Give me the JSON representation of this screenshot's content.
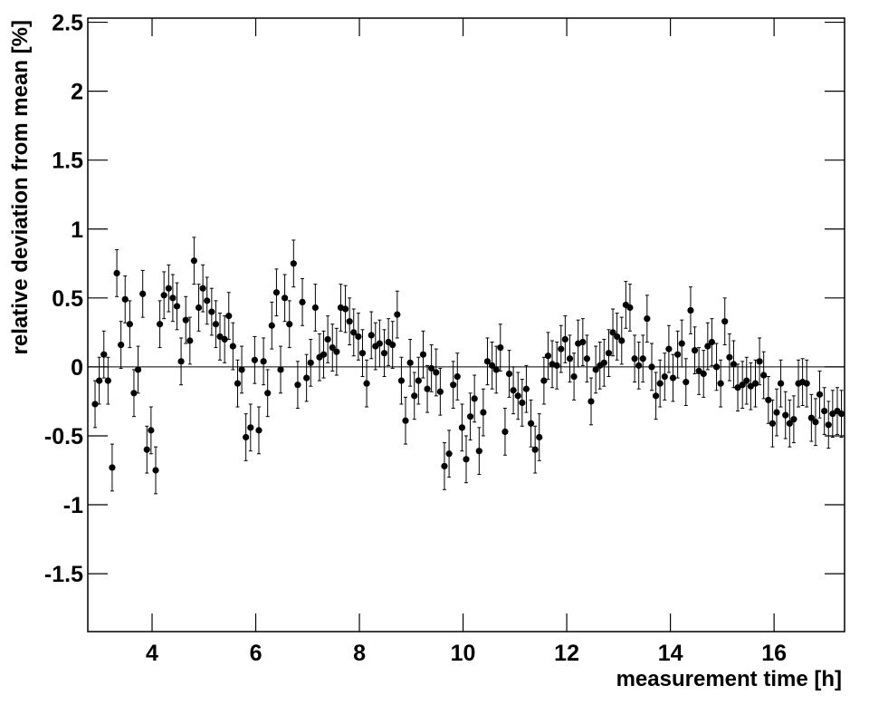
{
  "chart_data": {
    "type": "scatter",
    "xlabel": "measurement time [h]",
    "ylabel": "relative deviation from mean [%]",
    "xlim": [
      2.76,
      17.36
    ],
    "ylim": [
      -1.92,
      2.53
    ],
    "xticks": [
      4,
      6,
      8,
      10,
      12,
      14,
      16
    ],
    "yticks": [
      -1.5,
      -1,
      -0.5,
      0,
      0.5,
      1,
      1.5,
      2,
      2.5
    ],
    "color": "#000000",
    "error": 0.17,
    "x": [
      2.9,
      2.98,
      3.07,
      3.15,
      3.23,
      3.32,
      3.4,
      3.48,
      3.57,
      3.65,
      3.73,
      3.82,
      3.9,
      3.98,
      4.07,
      4.15,
      4.23,
      4.32,
      4.4,
      4.48,
      4.56,
      4.65,
      4.73,
      4.81,
      4.9,
      4.98,
      5.06,
      5.15,
      5.23,
      5.31,
      5.4,
      5.48,
      5.56,
      5.65,
      5.73,
      5.81,
      5.9,
      5.98,
      6.06,
      6.15,
      6.23,
      6.31,
      6.4,
      6.48,
      6.56,
      6.65,
      6.73,
      6.81,
      6.9,
      6.98,
      7.06,
      7.15,
      7.23,
      7.31,
      7.39,
      7.48,
      7.56,
      7.64,
      7.73,
      7.81,
      7.89,
      7.98,
      8.06,
      8.14,
      8.23,
      8.31,
      8.39,
      8.48,
      8.56,
      8.64,
      8.73,
      8.81,
      8.89,
      8.98,
      9.06,
      9.14,
      9.23,
      9.31,
      9.39,
      9.48,
      9.56,
      9.64,
      9.73,
      9.81,
      9.89,
      9.98,
      10.06,
      10.14,
      10.22,
      10.31,
      10.39,
      10.47,
      10.56,
      10.64,
      10.72,
      10.81,
      10.89,
      10.97,
      11.06,
      11.14,
      11.22,
      11.31,
      11.39,
      11.47,
      11.56,
      11.64,
      11.72,
      11.81,
      11.89,
      11.97,
      12.06,
      12.14,
      12.22,
      12.31,
      12.39,
      12.47,
      12.56,
      12.64,
      12.72,
      12.81,
      12.89,
      12.97,
      13.06,
      13.14,
      13.22,
      13.31,
      13.39,
      13.47,
      13.55,
      13.64,
      13.72,
      13.8,
      13.89,
      13.97,
      14.05,
      14.14,
      14.22,
      14.3,
      14.39,
      14.47,
      14.55,
      14.64,
      14.72,
      14.8,
      14.89,
      14.97,
      15.05,
      15.14,
      15.22,
      15.3,
      15.39,
      15.47,
      15.55,
      15.64,
      15.72,
      15.8,
      15.89,
      15.97,
      16.05,
      16.13,
      16.22,
      16.3,
      16.38,
      16.47,
      16.55,
      16.63,
      16.72,
      16.8,
      16.88,
      16.97,
      17.05,
      17.13,
      17.22,
      17.3
    ],
    "values": [
      -0.27,
      -0.1,
      0.09,
      -0.1,
      -0.73,
      0.68,
      0.16,
      0.49,
      0.31,
      -0.19,
      -0.02,
      0.53,
      -0.6,
      -0.46,
      -0.75,
      0.31,
      0.52,
      0.57,
      0.5,
      0.44,
      0.04,
      0.34,
      0.19,
      0.77,
      0.43,
      0.57,
      0.48,
      0.4,
      0.31,
      0.22,
      0.2,
      0.37,
      0.15,
      -0.12,
      -0.02,
      -0.51,
      -0.44,
      0.05,
      -0.46,
      0.04,
      -0.19,
      0.3,
      0.54,
      -0.02,
      0.5,
      0.31,
      0.75,
      -0.13,
      0.47,
      -0.08,
      0.03,
      0.43,
      0.07,
      0.09,
      0.2,
      0.14,
      0.11,
      0.43,
      0.42,
      0.33,
      0.25,
      0.22,
      0.1,
      -0.12,
      0.23,
      0.15,
      0.17,
      0.1,
      0.18,
      0.16,
      0.38,
      -0.1,
      -0.39,
      0.03,
      -0.21,
      -0.1,
      0.09,
      -0.16,
      -0.01,
      -0.04,
      -0.18,
      -0.72,
      -0.63,
      -0.13,
      -0.07,
      -0.44,
      -0.67,
      -0.36,
      -0.23,
      -0.61,
      -0.33,
      0.04,
      0.01,
      -0.02,
      0.14,
      -0.47,
      -0.05,
      -0.17,
      -0.21,
      -0.26,
      -0.16,
      -0.41,
      -0.6,
      -0.51,
      -0.1,
      0.08,
      0.02,
      0.01,
      0.13,
      0.2,
      0.06,
      -0.07,
      0.17,
      0.18,
      0.06,
      -0.25,
      -0.02,
      0.01,
      0.03,
      0.1,
      0.25,
      0.22,
      0.19,
      0.45,
      0.43,
      0.06,
      0.01,
      0.06,
      0.35,
      0,
      -0.21,
      -0.12,
      -0.07,
      0.13,
      -0.08,
      0.09,
      0.17,
      -0.11,
      0.41,
      0.12,
      -0.03,
      -0.05,
      0.15,
      0.18,
      0,
      -0.12,
      0.33,
      0.07,
      0.02,
      -0.15,
      -0.13,
      -0.1,
      -0.14,
      -0.12,
      0.04,
      -0.06,
      -0.24,
      -0.41,
      -0.33,
      -0.12,
      -0.35,
      -0.41,
      -0.38,
      -0.12,
      -0.11,
      -0.12,
      -0.37,
      -0.4,
      -0.2,
      -0.32,
      -0.42,
      -0.34,
      -0.32,
      -0.34
    ]
  }
}
